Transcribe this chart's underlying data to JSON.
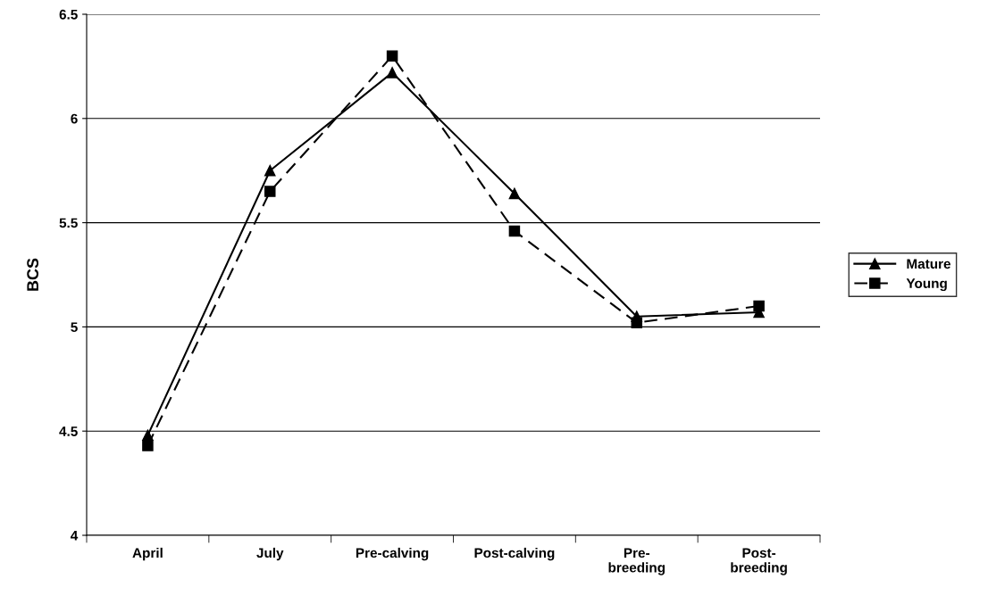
{
  "chart_data": {
    "type": "line",
    "ylabel": "BCS",
    "categories": [
      "April",
      "July",
      "Pre-calving",
      "Post-calving",
      "Pre-\nbreeding",
      "Post-\nbreeding"
    ],
    "series": [
      {
        "name": "Mature",
        "color": "#000000",
        "marker": "triangle",
        "line_style": "solid",
        "values": [
          4.48,
          5.75,
          6.22,
          5.64,
          5.05,
          5.07
        ]
      },
      {
        "name": "Young",
        "color": "#000000",
        "marker": "square",
        "line_style": "dashed",
        "values": [
          4.43,
          5.65,
          6.3,
          5.46,
          5.02,
          5.1
        ]
      }
    ],
    "ylim": [
      4,
      6.5
    ],
    "yticks": [
      4,
      4.5,
      5,
      5.5,
      6,
      6.5
    ],
    "grid": "y",
    "legend": "right"
  }
}
